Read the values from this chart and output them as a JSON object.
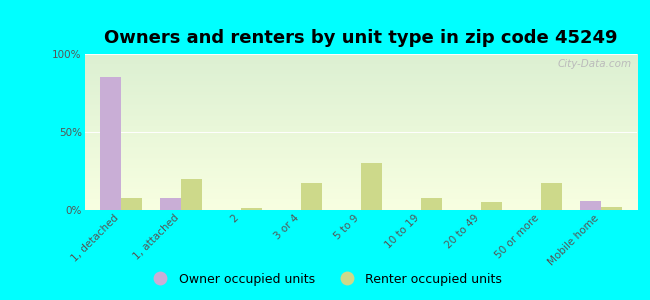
{
  "title": "Owners and renters by unit type in zip code 45249",
  "categories": [
    "1, detached",
    "1, attached",
    "2",
    "3 or 4",
    "5 to 9",
    "10 to 19",
    "20 to 49",
    "50 or more",
    "Mobile home"
  ],
  "owner_values": [
    85,
    8,
    0.3,
    0.3,
    0.3,
    0.3,
    0.3,
    0.3,
    6
  ],
  "renter_values": [
    8,
    20,
    1,
    17,
    30,
    8,
    5,
    17,
    2
  ],
  "owner_color": "#c9aed6",
  "renter_color": "#cdd98a",
  "bg_outer": "#00ffff",
  "plot_bg_top": "#f0f8e8",
  "plot_bg_bottom": "#f8ffe0",
  "ylim": [
    0,
    100
  ],
  "yticks": [
    0,
    50,
    100
  ],
  "ytick_labels": [
    "0%",
    "50%",
    "100%"
  ],
  "legend_owner": "Owner occupied units",
  "legend_renter": "Renter occupied units",
  "bar_width": 0.35,
  "title_fontsize": 13,
  "axis_label_fontsize": 7.5,
  "legend_fontsize": 9,
  "watermark": "City-Data.com"
}
